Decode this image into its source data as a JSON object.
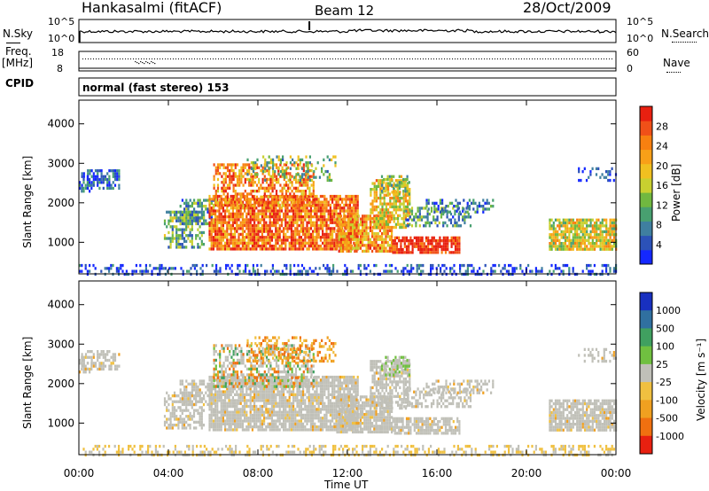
{
  "header": {
    "station": "Hankasalmi (fitACF)",
    "beam": "Beam 12",
    "date": "28/Oct/2009"
  },
  "panel_labels": {
    "nsky": "N.Sky",
    "nsearch": "N.Search",
    "freq": "Freq.",
    "freq_unit": "[MHz]",
    "nave": "Nave",
    "cpid": "CPID",
    "cpid_value": "normal (fast stereo) 153",
    "nsky_ticks": [
      "10^5",
      "10^0"
    ],
    "nsearch_ticks": [
      "10^5",
      "10^0"
    ],
    "freq_ticks": [
      "18",
      "8"
    ],
    "nave_ticks": [
      "60",
      "0"
    ]
  },
  "chart_data": [
    {
      "type": "heatmap",
      "name": "power",
      "xlabel": "",
      "ylabel": "Slant Range [km]",
      "x_ticks": [
        "00:00",
        "04:00",
        "08:00",
        "12:00",
        "16:00",
        "20:00",
        "00:00"
      ],
      "y_ticks": [
        1000,
        2000,
        3000,
        4000
      ],
      "xlim": [
        0,
        24
      ],
      "ylim": [
        200,
        4600
      ],
      "colorbar_label": "Power [dB]",
      "colorbar_ticks": [
        4,
        8,
        12,
        16,
        20,
        24,
        28
      ],
      "colorbar_colors": [
        "#1428ff",
        "#2c52b8",
        "#3f7fa0",
        "#48a070",
        "#70b840",
        "#c8d030",
        "#f0c020",
        "#f8a018",
        "#f88010",
        "#f05018",
        "#e82010"
      ]
    },
    {
      "type": "heatmap",
      "name": "velocity",
      "xlabel": "Time UT",
      "ylabel": "Slant Range [km]",
      "x_ticks": [
        "00:00",
        "04:00",
        "08:00",
        "12:00",
        "16:00",
        "20:00",
        "00:00"
      ],
      "y_ticks": [
        1000,
        2000,
        3000,
        4000
      ],
      "xlim": [
        0,
        24
      ],
      "ylim": [
        200,
        4600
      ],
      "colorbar_label": "Velocity [m s⁻¹]",
      "colorbar_ticks": [
        1000,
        500,
        100,
        25,
        -25,
        -100,
        -500,
        -1000
      ],
      "colorbar_colors": [
        "#1830c0",
        "#3070a0",
        "#40a060",
        "#70c040",
        "#c0c0b8",
        "#f0c040",
        "#f0a020",
        "#f07010",
        "#e82010"
      ]
    }
  ]
}
